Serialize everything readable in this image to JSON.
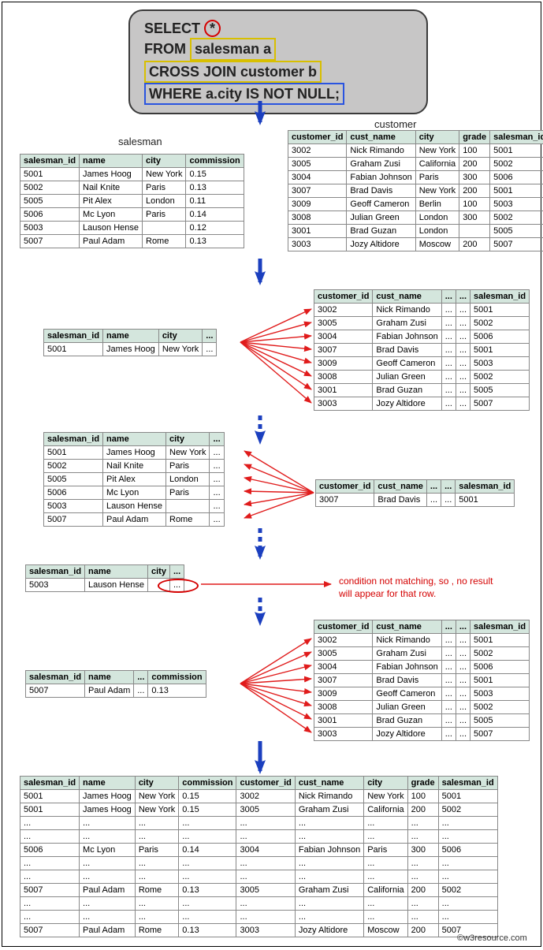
{
  "sql": {
    "select": "SELECT",
    "star": "*",
    "from": "FROM",
    "from_expr": "salesman a",
    "cross": "CROSS JOIN customer b",
    "where": "WHERE a.city IS NOT NULL;"
  },
  "captions": {
    "salesman": "salesman",
    "customer": "customer"
  },
  "note": {
    "line1": "condition not matching, so , no result",
    "line2": "will appear for that row."
  },
  "copyright": "©w3resource.com",
  "colors": {
    "header_bg": "#d4e6dd",
    "border": "#888888",
    "box_bg": "#c7c6c6",
    "blue_arrow": "#1b3fbf",
    "red_arrow": "#e01b1b"
  },
  "salesman": {
    "cols": [
      "salesman_id",
      "name",
      "city",
      "commission"
    ],
    "rows": [
      [
        "5001",
        "James Hoog",
        "New York",
        "0.15"
      ],
      [
        "5002",
        "Nail Knite",
        "Paris",
        "0.13"
      ],
      [
        "5005",
        "Pit Alex",
        "London",
        "0.11"
      ],
      [
        "5006",
        "Mc Lyon",
        "Paris",
        "0.14"
      ],
      [
        "5003",
        "Lauson Hense",
        "",
        "0.12"
      ],
      [
        "5007",
        "Paul Adam",
        "Rome",
        "0.13"
      ]
    ]
  },
  "customer": {
    "cols": [
      "customer_id",
      "cust_name",
      "city",
      "grade",
      "salesman_id"
    ],
    "rows": [
      [
        "3002",
        "Nick Rimando",
        "New York",
        "100",
        "5001"
      ],
      [
        "3005",
        "Graham Zusi",
        "California",
        "200",
        "5002"
      ],
      [
        "3004",
        "Fabian Johnson",
        "Paris",
        "300",
        "5006"
      ],
      [
        "3007",
        "Brad Davis",
        "New York",
        "200",
        "5001"
      ],
      [
        "3009",
        "Geoff Cameron",
        "Berlin",
        "100",
        "5003"
      ],
      [
        "3008",
        "Julian Green",
        "London",
        "300",
        "5002"
      ],
      [
        "3001",
        "Brad Guzan",
        "London",
        "",
        "5005"
      ],
      [
        "3003",
        "Jozy Altidore",
        "Moscow",
        "200",
        "5007"
      ]
    ]
  },
  "s_partial1": {
    "cols": [
      "salesman_id",
      "name",
      "city",
      "..."
    ],
    "rows": [
      [
        "5001",
        "James Hoog",
        "New York",
        "..."
      ]
    ]
  },
  "c_partial1": {
    "cols": [
      "customer_id",
      "cust_name",
      "...",
      "...",
      "salesman_id"
    ],
    "rows": [
      [
        "3002",
        "Nick Rimando",
        "...",
        "...",
        "5001"
      ],
      [
        "3005",
        "Graham Zusi",
        "...",
        "...",
        "5002"
      ],
      [
        "3004",
        "Fabian Johnson",
        "...",
        "...",
        "5006"
      ],
      [
        "3007",
        "Brad Davis",
        "...",
        "...",
        "5001"
      ],
      [
        "3009",
        "Geoff Cameron",
        "...",
        "...",
        "5003"
      ],
      [
        "3008",
        "Julian Green",
        "...",
        "...",
        "5002"
      ],
      [
        "3001",
        "Brad Guzan",
        "...",
        "...",
        "5005"
      ],
      [
        "3003",
        "Jozy Altidore",
        "...",
        "...",
        "5007"
      ]
    ]
  },
  "s_full2": {
    "cols": [
      "salesman_id",
      "name",
      "city",
      "..."
    ],
    "rows": [
      [
        "5001",
        "James Hoog",
        "New York",
        "..."
      ],
      [
        "5002",
        "Nail Knite",
        "Paris",
        "..."
      ],
      [
        "5005",
        "Pit Alex",
        "London",
        "..."
      ],
      [
        "5006",
        "Mc Lyon",
        "Paris",
        "..."
      ],
      [
        "5003",
        "Lauson Hense",
        "",
        "..."
      ],
      [
        "5007",
        "Paul Adam",
        "Rome",
        "..."
      ]
    ]
  },
  "c_single2": {
    "cols": [
      "customer_id",
      "cust_name",
      "...",
      "...",
      "salesman_id"
    ],
    "rows": [
      [
        "3007",
        "Brad Davis",
        "...",
        "...",
        "5001"
      ]
    ]
  },
  "s_partial3": {
    "cols": [
      "salesman_id",
      "name",
      "city",
      "..."
    ],
    "rows": [
      [
        "5003",
        "Lauson Hense",
        "",
        "..."
      ]
    ]
  },
  "s_partial4": {
    "cols": [
      "salesman_id",
      "name",
      "...",
      "commission"
    ],
    "rows": [
      [
        "5007",
        "Paul Adam",
        "...",
        "0.13"
      ]
    ]
  },
  "result": {
    "cols": [
      "salesman_id",
      "name",
      "city",
      "commission",
      "customer_id",
      "cust_name",
      "city",
      "grade",
      "salesman_id"
    ],
    "rows": [
      [
        "5001",
        "James Hoog",
        "New York",
        "0.15",
        "3002",
        "Nick Rimando",
        "New York",
        "100",
        "5001"
      ],
      [
        "5001",
        "James Hoog",
        "New York",
        "0.15",
        "3005",
        "Graham Zusi",
        "California",
        "200",
        "5002"
      ],
      [
        "...",
        "...",
        "...",
        "...",
        "...",
        "...",
        "...",
        "...",
        "..."
      ],
      [
        "...",
        "...",
        "...",
        "...",
        "...",
        "...",
        "...",
        "...",
        "..."
      ],
      [
        "5006",
        "Mc Lyon",
        "Paris",
        "0.14",
        "3004",
        "Fabian Johnson",
        "Paris",
        "300",
        "5006"
      ],
      [
        "...",
        "...",
        "...",
        "...",
        "...",
        "...",
        "...",
        "...",
        "..."
      ],
      [
        "...",
        "...",
        "...",
        "...",
        "...",
        "...",
        "...",
        "...",
        "..."
      ],
      [
        "5007",
        "Paul Adam",
        "Rome",
        "0.13",
        "3005",
        "Graham Zusi",
        "California",
        "200",
        "5002"
      ],
      [
        "...",
        "...",
        "...",
        "...",
        "...",
        "...",
        "...",
        "...",
        "..."
      ],
      [
        "...",
        "...",
        "...",
        "...",
        "...",
        "...",
        "...",
        "...",
        "..."
      ],
      [
        "5007",
        "Paul Adam",
        "Rome",
        "0.13",
        "3003",
        "Jozy Altidore",
        "Moscow",
        "200",
        "5007"
      ]
    ]
  }
}
